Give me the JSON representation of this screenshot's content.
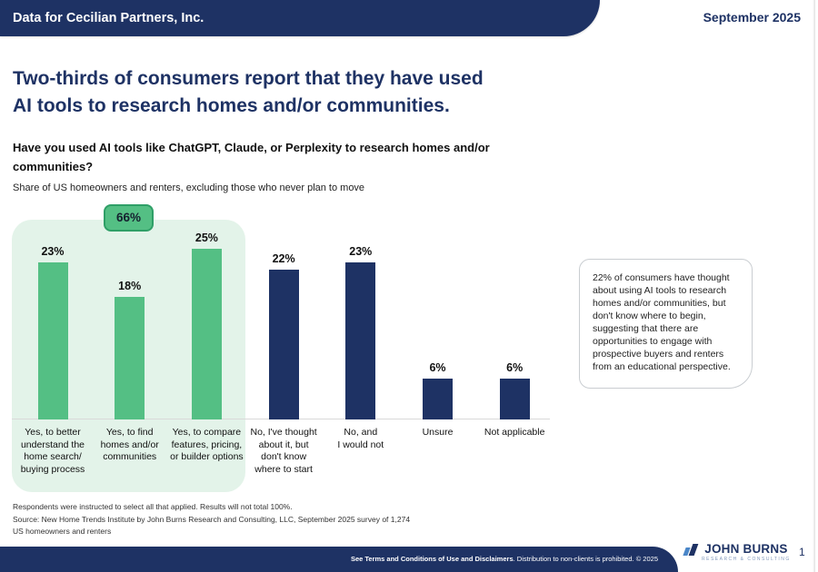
{
  "colors": {
    "navy": "#1e3264",
    "green": "#54bf84",
    "panel_green": "#e3f3e9",
    "badge_border": "#2f9f67",
    "logo_blue": "#4a86c8"
  },
  "header": {
    "client_label": "Data for Cecilian Partners, Inc.",
    "date": "September 2025"
  },
  "title": "Two-thirds of consumers report that they have used\nAI tools to research homes and/or communities.",
  "question": "Have you used AI tools like ChatGPT, Claude, or Perplexity to research homes and/or\ncommunities?",
  "subtitle": "Share of US homeowners and renters, excluding those who never plan to move",
  "chart_data": {
    "type": "bar",
    "title": "Have you used AI tools like ChatGPT, Claude, or Perplexity to research homes and/or communities?",
    "categories": [
      "Yes, to better\nunderstand the\nhome search/\nbuying process",
      "Yes, to find\nhomes and/or\ncommunities",
      "Yes, to compare\nfeatures, pricing,\nor builder options",
      "No, I've thought\nabout it, but\ndon't know\nwhere to start",
      "No, and\nI would not",
      "Unsure",
      "Not applicable"
    ],
    "values": [
      23,
      18,
      25,
      22,
      23,
      6,
      6
    ],
    "value_labels": [
      "23%",
      "18%",
      "25%",
      "22%",
      "23%",
      "6%",
      "6%"
    ],
    "bar_colors": [
      "green",
      "green",
      "green",
      "navy",
      "navy",
      "navy",
      "navy"
    ],
    "highlight_group": {
      "label": "66%",
      "category_indices": [
        0,
        1,
        2
      ]
    },
    "y_axis_visible": false,
    "grid": false,
    "legend": "none"
  },
  "callout": {
    "text": "22% of consumers have thought about using AI tools to research homes and/or communities, but don't know where to begin, suggesting that there are opportunities to engage with prospective buyers and renters from an educational perspective."
  },
  "footnotes": {
    "note": "Respondents were instructed to select all that applied. Results will not total 100%.",
    "source": "Source: New Home Trends Institute by John Burns Research and Consulting, LLC, September 2025 survey of 1,274 US homeowners and renters"
  },
  "footer": {
    "disclaimer_bold": "See Terms and Conditions of Use and Disclaimers",
    "disclaimer_rest": ". Distribution to non-clients is prohibited. © 2025",
    "logo_title": "JOHN BURNS",
    "logo_subtitle": "RESEARCH & CONSULTING",
    "page_number": "1"
  }
}
